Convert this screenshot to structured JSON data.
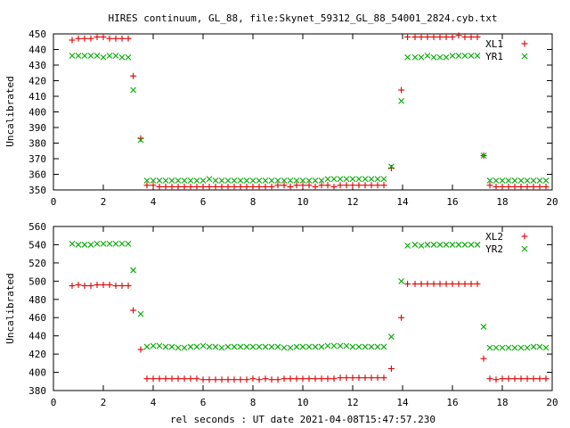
{
  "title": "HIRES continuum, GL_88, file:Skynet_59312_GL_88_54001_2824.cyb.txt",
  "xlabel": "rel seconds : UT date 2021-04-08T15:47:57.230",
  "colors": {
    "series1": "#dd0000",
    "series2": "#00aa00"
  },
  "chart_data": [
    {
      "type": "scatter",
      "ylabel": "Uncalibrated",
      "xlim": [
        0,
        20
      ],
      "ylim": [
        350,
        450
      ],
      "xticks": [
        0,
        2,
        4,
        6,
        8,
        10,
        12,
        14,
        16,
        18,
        20
      ],
      "yticks": [
        350,
        360,
        370,
        380,
        390,
        400,
        410,
        420,
        430,
        440,
        450
      ],
      "series": [
        {
          "name": "XL1",
          "marker": "plus",
          "x": [
            0.75,
            1.0,
            1.25,
            1.5,
            1.75,
            2.0,
            2.25,
            2.5,
            2.75,
            3.0,
            3.2,
            3.5,
            3.75,
            4.0,
            4.25,
            4.5,
            4.75,
            5.0,
            5.25,
            5.5,
            5.75,
            6.0,
            6.25,
            6.5,
            6.75,
            7.0,
            7.25,
            7.5,
            7.75,
            8.0,
            8.25,
            8.5,
            8.75,
            9.0,
            9.25,
            9.5,
            9.75,
            10.0,
            10.25,
            10.5,
            10.75,
            11.0,
            11.25,
            11.5,
            11.75,
            12.0,
            12.25,
            12.5,
            12.75,
            13.0,
            13.25,
            13.55,
            13.95,
            14.2,
            14.5,
            14.75,
            15.0,
            15.25,
            15.5,
            15.75,
            16.0,
            16.25,
            16.5,
            16.75,
            17.0,
            17.25,
            17.5,
            17.75,
            18.0,
            18.25,
            18.5,
            18.75,
            19.0,
            19.25,
            19.5,
            19.75
          ],
          "y": [
            446,
            447,
            447,
            447,
            448,
            448,
            447,
            447,
            447,
            447,
            423,
            383,
            353,
            353,
            352,
            352,
            352,
            352,
            352,
            352,
            352,
            352,
            352,
            352,
            352,
            352,
            352,
            352,
            352,
            352,
            352,
            352,
            352,
            353,
            353,
            352,
            353,
            353,
            353,
            352,
            353,
            353,
            352,
            353,
            353,
            353,
            353,
            353,
            353,
            353,
            353,
            364,
            414,
            448,
            448,
            448,
            448,
            448,
            448,
            448,
            448,
            449,
            448,
            448,
            448,
            372,
            353,
            352,
            352,
            352,
            352,
            352,
            352,
            352,
            352,
            352
          ]
        },
        {
          "name": "YR1",
          "marker": "cross",
          "x": [
            0.75,
            1.0,
            1.25,
            1.5,
            1.75,
            2.0,
            2.25,
            2.5,
            2.75,
            3.0,
            3.2,
            3.5,
            3.75,
            4.0,
            4.25,
            4.5,
            4.75,
            5.0,
            5.25,
            5.5,
            5.75,
            6.0,
            6.25,
            6.5,
            6.75,
            7.0,
            7.25,
            7.5,
            7.75,
            8.0,
            8.25,
            8.5,
            8.75,
            9.0,
            9.25,
            9.5,
            9.75,
            10.0,
            10.25,
            10.5,
            10.75,
            11.0,
            11.25,
            11.5,
            11.75,
            12.0,
            12.25,
            12.5,
            12.75,
            13.0,
            13.25,
            13.55,
            13.95,
            14.2,
            14.5,
            14.75,
            15.0,
            15.25,
            15.5,
            15.75,
            16.0,
            16.25,
            16.5,
            16.75,
            17.0,
            17.25,
            17.5,
            17.75,
            18.0,
            18.25,
            18.5,
            18.75,
            19.0,
            19.25,
            19.5,
            19.75
          ],
          "y": [
            436,
            436,
            436,
            436,
            436,
            435,
            436,
            436,
            435,
            435,
            414,
            382,
            356,
            356,
            356,
            356,
            356,
            356,
            356,
            356,
            356,
            356,
            357,
            356,
            356,
            356,
            356,
            356,
            356,
            356,
            356,
            356,
            356,
            356,
            356,
            356,
            356,
            356,
            356,
            356,
            356,
            357,
            357,
            357,
            357,
            357,
            357,
            357,
            357,
            357,
            357,
            365,
            407,
            435,
            435,
            435,
            436,
            435,
            435,
            435,
            436,
            436,
            436,
            436,
            436,
            372,
            356,
            356,
            356,
            356,
            356,
            356,
            356,
            356,
            356,
            356
          ]
        }
      ]
    },
    {
      "type": "scatter",
      "ylabel": "Uncalibrated",
      "xlim": [
        0,
        20
      ],
      "ylim": [
        380,
        560
      ],
      "xticks": [
        0,
        2,
        4,
        6,
        8,
        10,
        12,
        14,
        16,
        18,
        20
      ],
      "yticks": [
        380,
        400,
        420,
        440,
        460,
        480,
        500,
        520,
        540,
        560
      ],
      "series": [
        {
          "name": "XL2",
          "marker": "plus",
          "x": [
            0.75,
            1.0,
            1.25,
            1.5,
            1.75,
            2.0,
            2.25,
            2.5,
            2.75,
            3.0,
            3.2,
            3.5,
            3.75,
            4.0,
            4.25,
            4.5,
            4.75,
            5.0,
            5.25,
            5.5,
            5.75,
            6.0,
            6.25,
            6.5,
            6.75,
            7.0,
            7.25,
            7.5,
            7.75,
            8.0,
            8.25,
            8.5,
            8.75,
            9.0,
            9.25,
            9.5,
            9.75,
            10.0,
            10.25,
            10.5,
            10.75,
            11.0,
            11.25,
            11.5,
            11.75,
            12.0,
            12.25,
            12.5,
            12.75,
            13.0,
            13.25,
            13.55,
            13.95,
            14.2,
            14.5,
            14.75,
            15.0,
            15.25,
            15.5,
            15.75,
            16.0,
            16.25,
            16.5,
            16.75,
            17.0,
            17.25,
            17.5,
            17.75,
            18.0,
            18.25,
            18.5,
            18.75,
            19.0,
            19.25,
            19.5,
            19.75
          ],
          "y": [
            495,
            496,
            495,
            495,
            496,
            496,
            496,
            495,
            495,
            495,
            468,
            425,
            393,
            393,
            393,
            393,
            393,
            393,
            393,
            393,
            393,
            392,
            392,
            392,
            392,
            392,
            392,
            392,
            392,
            393,
            392,
            393,
            392,
            392,
            393,
            393,
            393,
            393,
            393,
            393,
            393,
            393,
            393,
            394,
            394,
            394,
            394,
            394,
            394,
            394,
            394,
            404,
            460,
            497,
            497,
            497,
            497,
            497,
            497,
            497,
            497,
            497,
            497,
            497,
            497,
            415,
            393,
            392,
            393,
            393,
            393,
            393,
            393,
            393,
            393,
            393
          ]
        },
        {
          "name": "YR2",
          "marker": "cross",
          "x": [
            0.75,
            1.0,
            1.25,
            1.5,
            1.75,
            2.0,
            2.25,
            2.5,
            2.75,
            3.0,
            3.2,
            3.5,
            3.75,
            4.0,
            4.25,
            4.5,
            4.75,
            5.0,
            5.25,
            5.5,
            5.75,
            6.0,
            6.25,
            6.5,
            6.75,
            7.0,
            7.25,
            7.5,
            7.75,
            8.0,
            8.25,
            8.5,
            8.75,
            9.0,
            9.25,
            9.5,
            9.75,
            10.0,
            10.25,
            10.5,
            10.75,
            11.0,
            11.25,
            11.5,
            11.75,
            12.0,
            12.25,
            12.5,
            12.75,
            13.0,
            13.25,
            13.55,
            13.95,
            14.2,
            14.5,
            14.75,
            15.0,
            15.25,
            15.5,
            15.75,
            16.0,
            16.25,
            16.5,
            16.75,
            17.0,
            17.25,
            17.5,
            17.75,
            18.0,
            18.25,
            18.5,
            18.75,
            19.0,
            19.25,
            19.5,
            19.75
          ],
          "y": [
            541,
            540,
            540,
            540,
            541,
            541,
            541,
            541,
            541,
            541,
            512,
            464,
            428,
            429,
            429,
            428,
            428,
            427,
            427,
            428,
            428,
            429,
            428,
            428,
            427,
            428,
            428,
            428,
            428,
            428,
            428,
            428,
            428,
            428,
            427,
            427,
            428,
            428,
            428,
            428,
            428,
            429,
            429,
            429,
            429,
            428,
            428,
            428,
            428,
            428,
            428,
            439,
            500,
            539,
            540,
            539,
            540,
            540,
            540,
            540,
            540,
            540,
            540,
            540,
            540,
            450,
            427,
            427,
            427,
            427,
            427,
            427,
            427,
            428,
            428,
            427
          ]
        }
      ]
    }
  ]
}
